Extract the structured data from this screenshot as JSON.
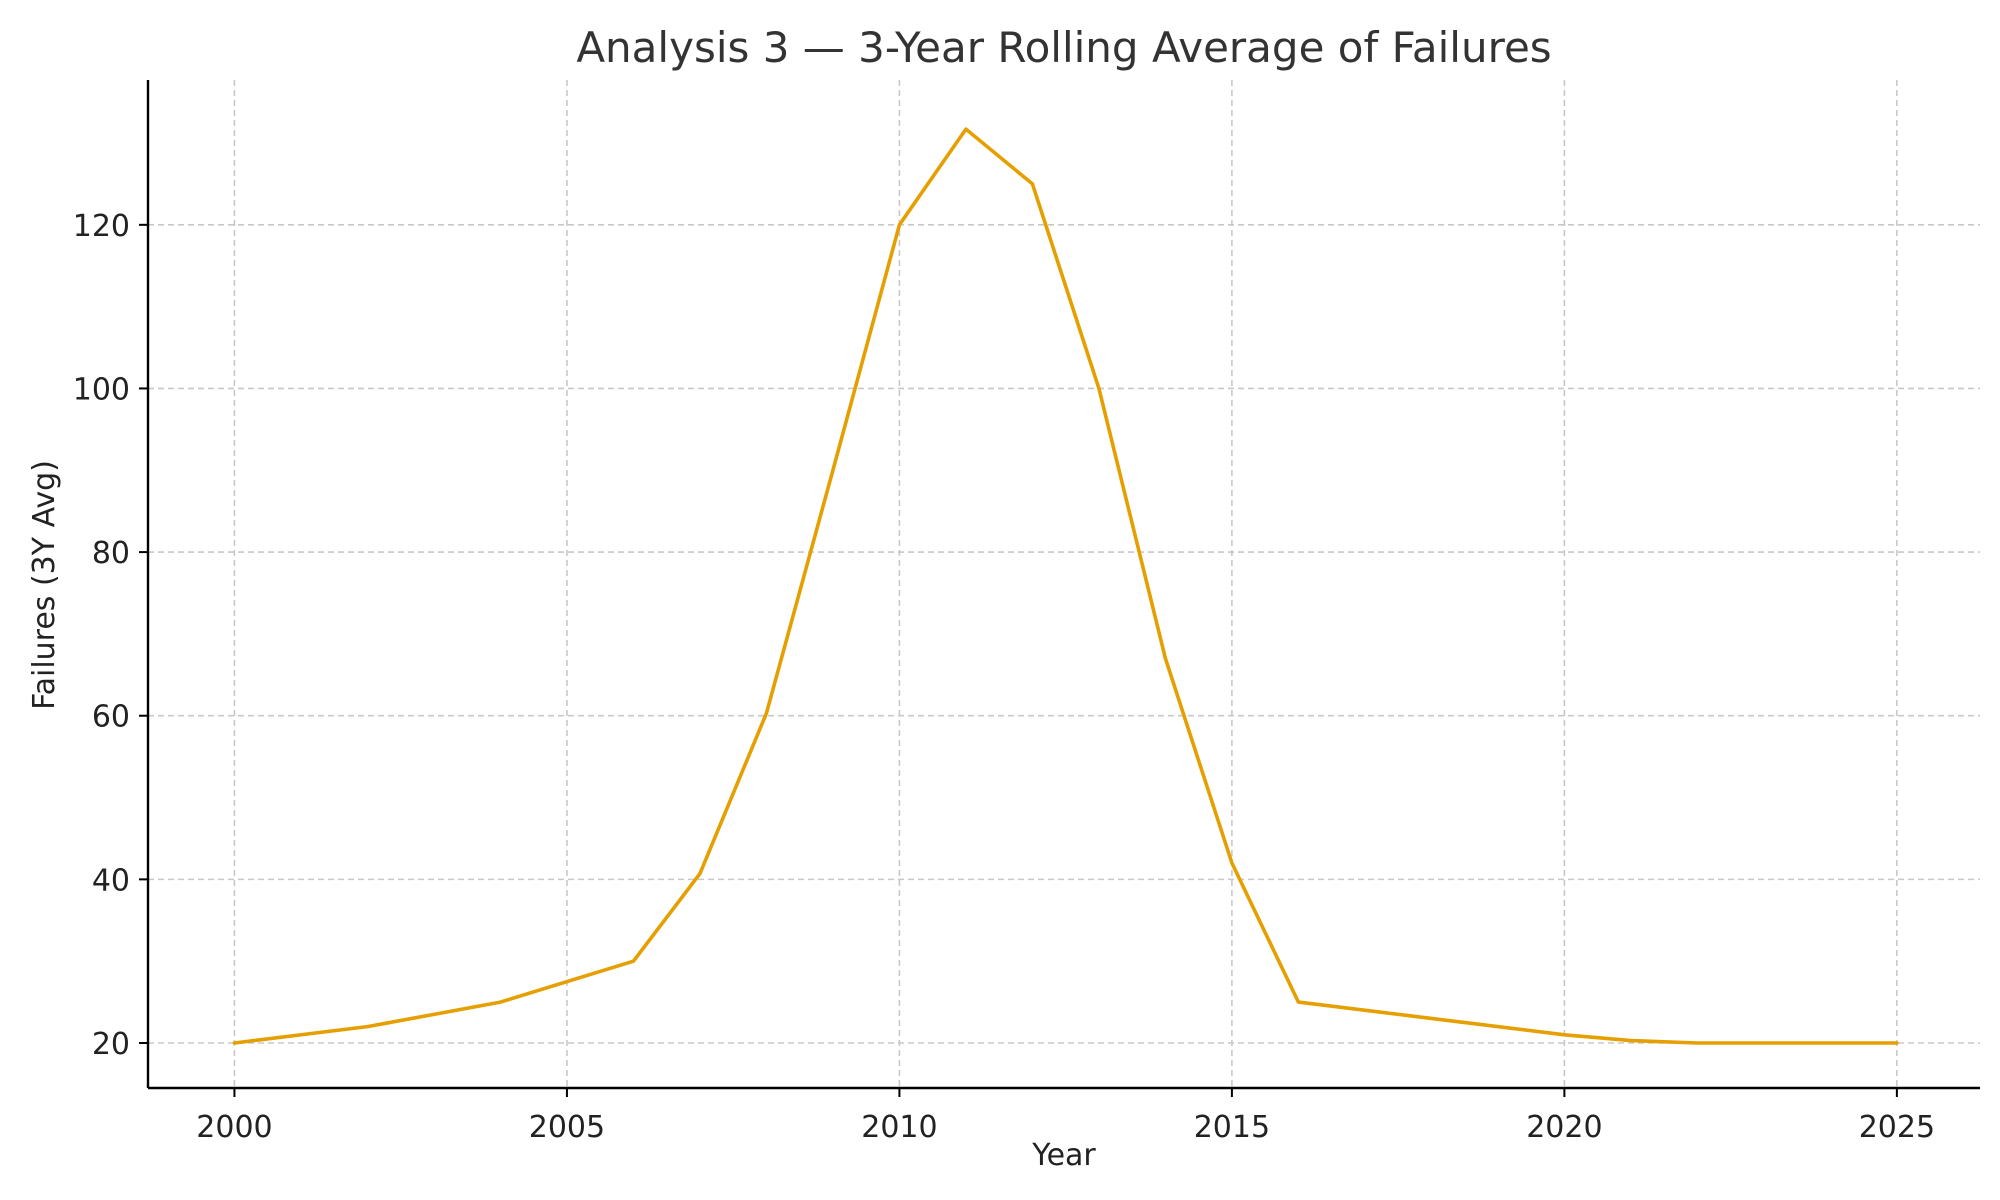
{
  "chart_data": {
    "type": "line",
    "title": "Analysis 3 — 3-Year Rolling Average of Failures",
    "xlabel": "Year",
    "ylabel": "Failures (3Y Avg)",
    "xlim": [
      1998.7,
      2026.25
    ],
    "ylim": [
      14.5,
      137.7
    ],
    "x_ticks": [
      2000,
      2005,
      2010,
      2015,
      2020,
      2025
    ],
    "y_ticks": [
      20,
      40,
      60,
      80,
      100,
      120
    ],
    "grid": true,
    "series": [
      {
        "color": "#e69f00",
        "x": [
          2000,
          2002,
          2004,
          2006,
          2007,
          2008,
          2009,
          2010,
          2011,
          2012,
          2013,
          2014,
          2015,
          2016,
          2018,
          2020,
          2021,
          2022,
          2023,
          2024,
          2025
        ],
        "y": [
          20,
          22,
          25,
          30,
          40.7,
          60.3,
          90,
          120,
          131.7,
          125,
          100,
          67,
          42,
          25,
          23,
          21,
          20.3,
          20,
          20,
          20,
          20
        ]
      }
    ]
  }
}
